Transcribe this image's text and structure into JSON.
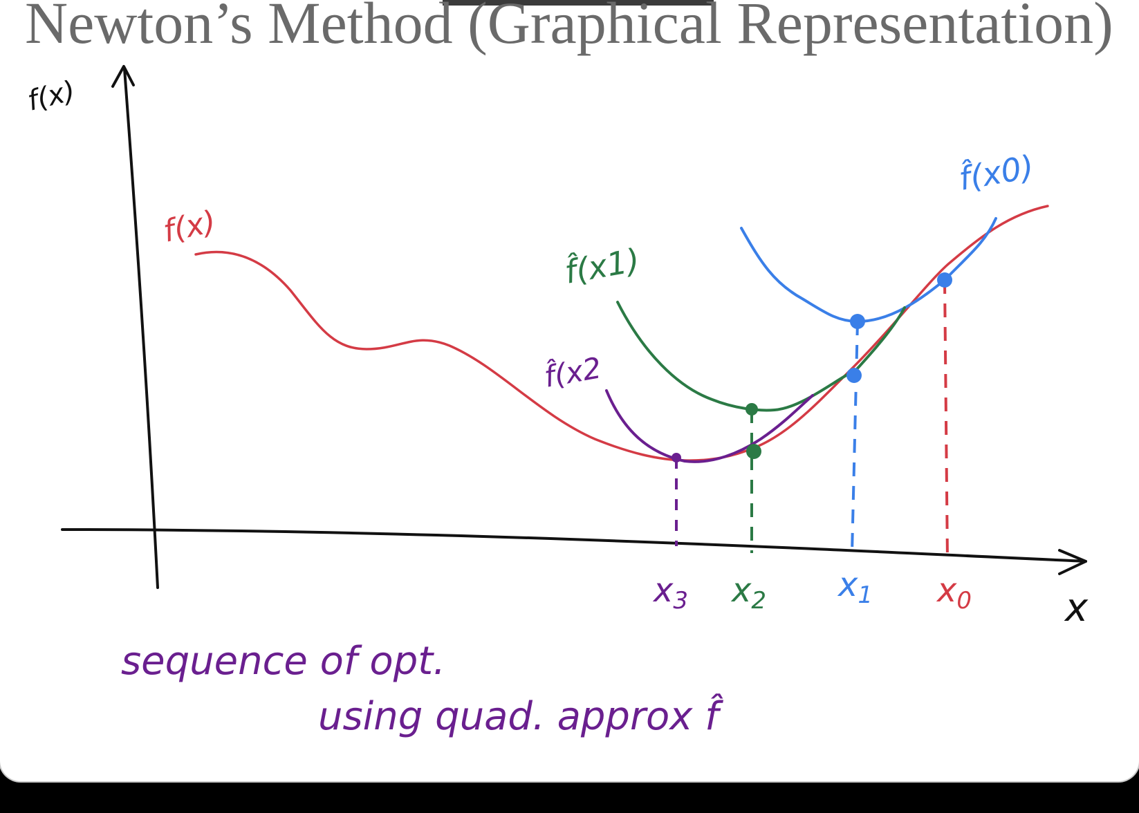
{
  "title": "Newton’s Method (Graphical Representation)",
  "axes": {
    "y_label": "f(x)",
    "x_label": "x"
  },
  "curves": {
    "f": {
      "label": "f(x)",
      "color": "#d43b45"
    },
    "approx_x0": {
      "label": "f̂(x0)",
      "color": "#3a7fe8"
    },
    "approx_x1": {
      "label": "f̂(x1)",
      "color": "#2b7a45"
    },
    "approx_x2": {
      "label": "f̂(x2",
      "color": "#6a1f8f"
    }
  },
  "iterates": [
    {
      "label": "x0",
      "base": "x",
      "sub": "0",
      "color": "#d43b45"
    },
    {
      "label": "x1",
      "base": "x",
      "sub": "1",
      "color": "#3a7fe8"
    },
    {
      "label": "x2",
      "base": "x",
      "sub": "2",
      "color": "#2b7a45"
    },
    {
      "label": "x3",
      "base": "x",
      "sub": "3",
      "color": "#6a1f8f"
    }
  ],
  "note": {
    "line1": "sequence of opt.",
    "line2": "using quad. approx f̂",
    "color": "#6a1f8f"
  }
}
